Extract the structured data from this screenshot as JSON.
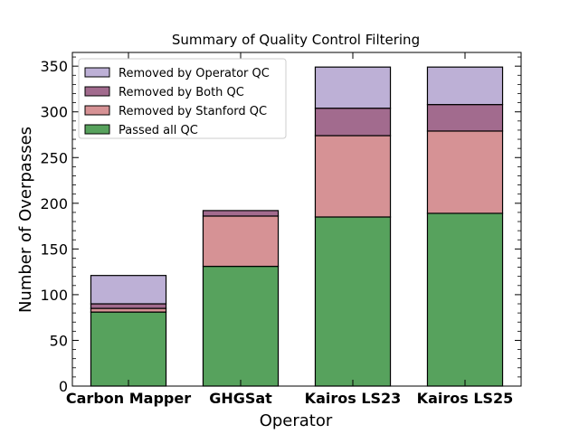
{
  "chart_data": {
    "type": "bar",
    "stacked": true,
    "title": "Summary of Quality Control Filtering",
    "xlabel": "Operator",
    "ylabel": "Number of Overpasses",
    "categories": [
      "Carbon Mapper",
      "GHGSat",
      "Kairos LS23",
      "Kairos LS25"
    ],
    "ylim": [
      0,
      365
    ],
    "yticks": [
      0,
      50,
      100,
      150,
      200,
      250,
      300,
      350
    ],
    "grid": false,
    "legend_position": "top-left",
    "series": [
      {
        "name": "Passed all QC",
        "color": "#57a25d",
        "values": [
          81,
          131,
          185,
          189
        ]
      },
      {
        "name": "Removed by Stanford QC",
        "color": "#d69295",
        "values": [
          4,
          55,
          89,
          90
        ]
      },
      {
        "name": "Removed by Both QC",
        "color": "#a26b8e",
        "values": [
          5,
          6,
          30,
          29
        ]
      },
      {
        "name": "Removed by Operator QC",
        "color": "#bdb0d6",
        "values": [
          31,
          0,
          45,
          41
        ]
      }
    ],
    "legend_order": [
      "Removed by Operator QC",
      "Removed by Both QC",
      "Removed by Stanford QC",
      "Passed all QC"
    ]
  }
}
